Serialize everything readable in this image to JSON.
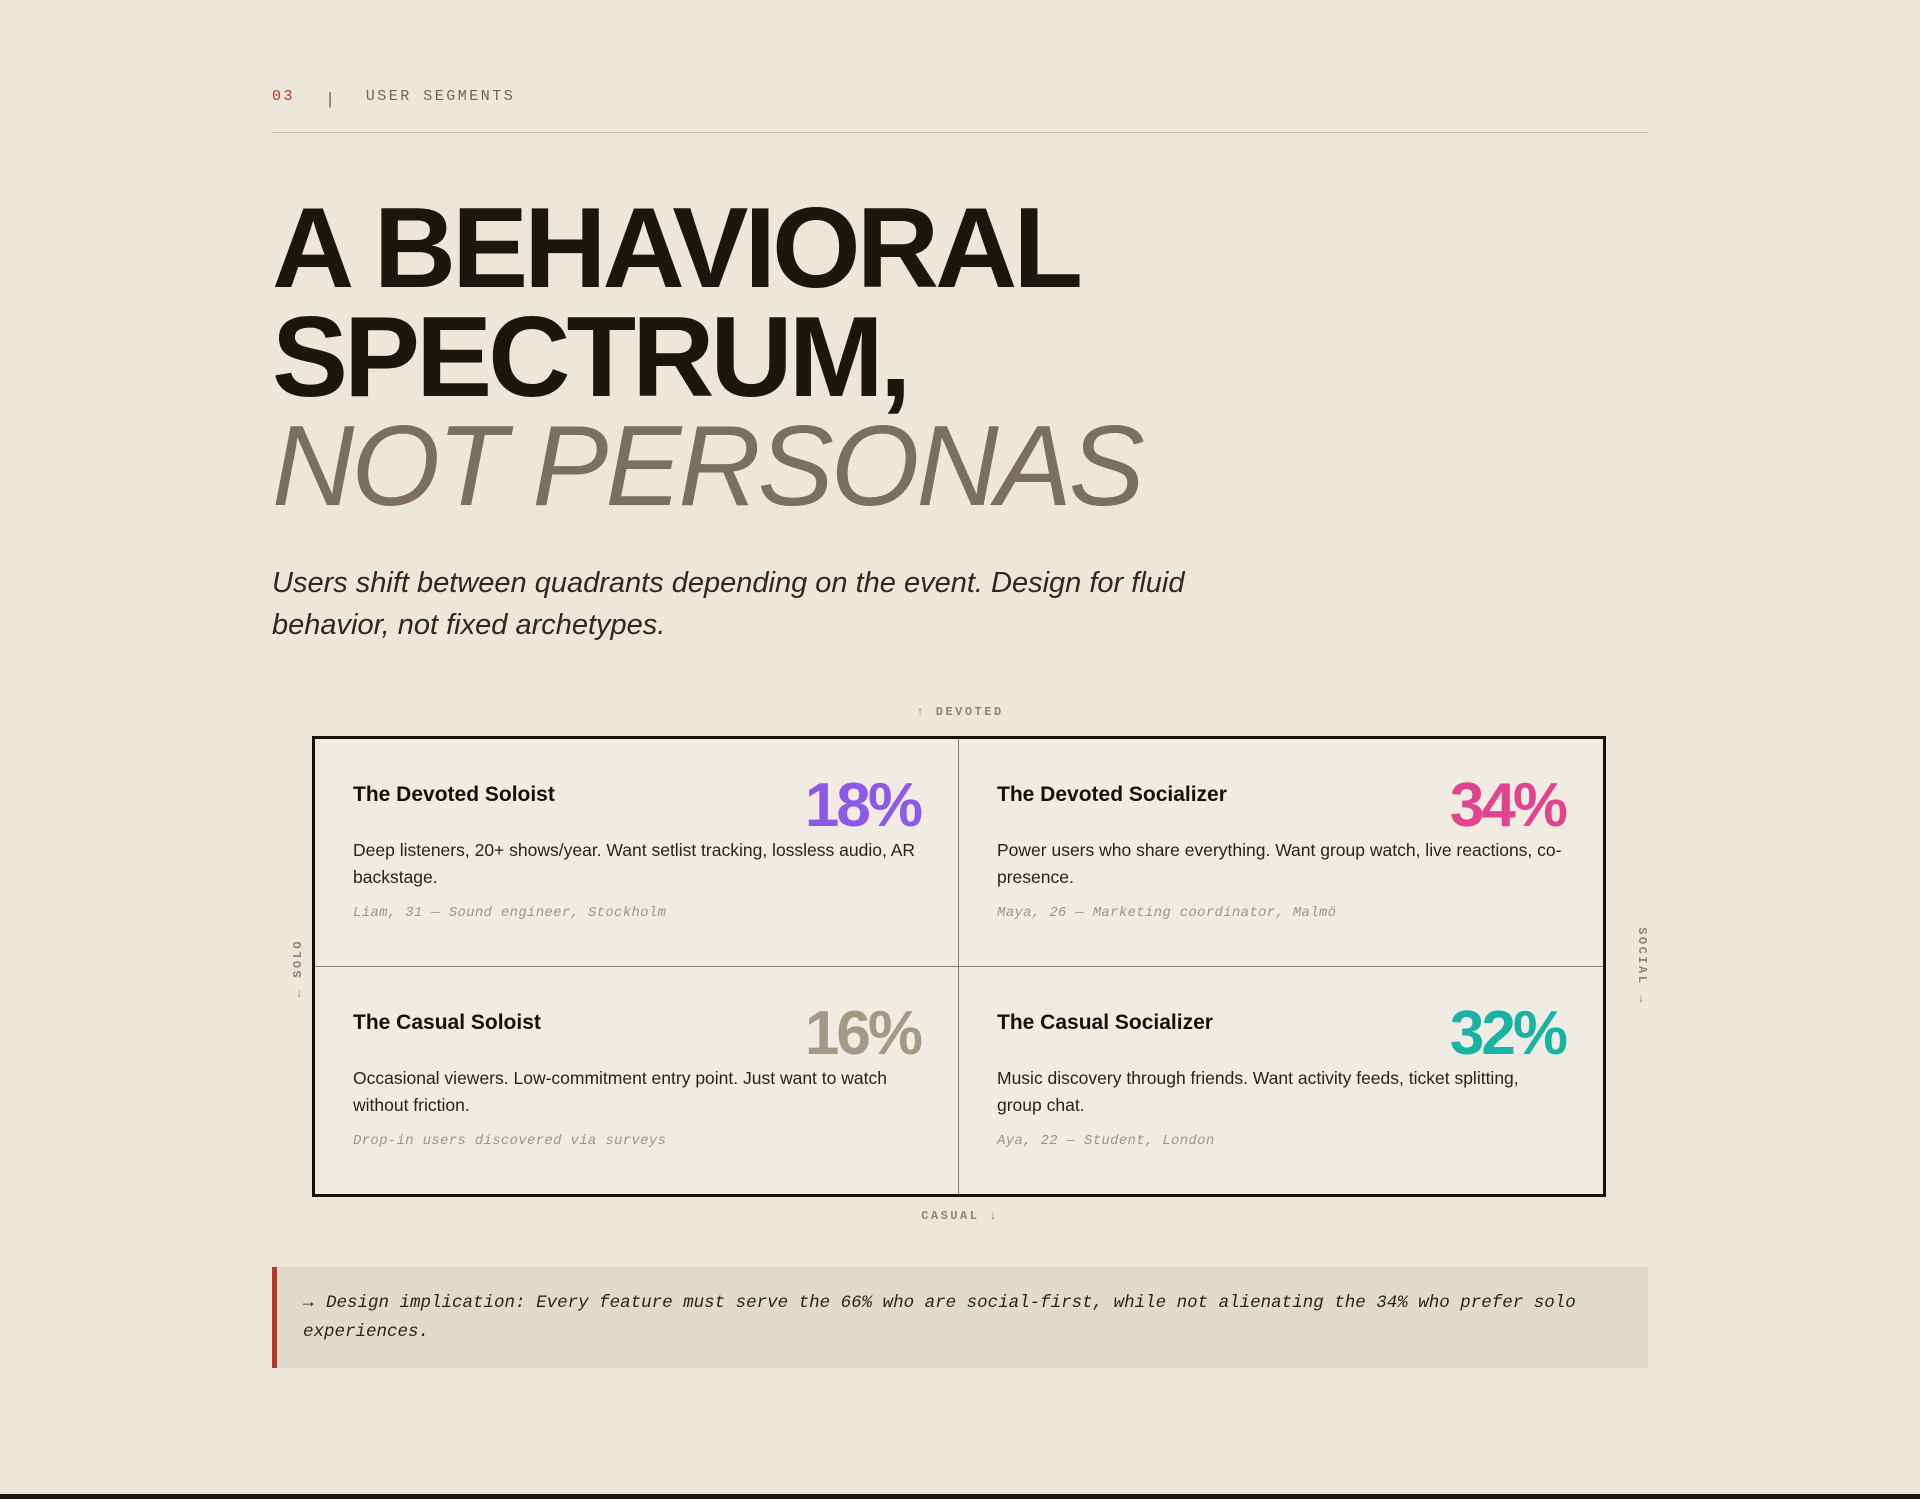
{
  "section": {
    "number": "03",
    "separator": "|",
    "label": "USER SEGMENTS"
  },
  "headline": {
    "line1": "A BEHAVIORAL",
    "line2": "SPECTRUM,",
    "line3": "NOT PERSONAS"
  },
  "subtitle": "Users shift between quadrants depending on the event. Design for fluid behavior, not fixed archetypes.",
  "matrix": {
    "axis_top": "↑ DEVOTED",
    "axis_bottom": "CASUAL ↓",
    "axis_left": "← SOLO",
    "axis_right": "SOCIAL →",
    "quadrants": [
      {
        "title": "The Devoted Soloist",
        "percent": "18%",
        "color": "#8b5be8",
        "description": "Deep listeners, 20+ shows/year. Want setlist tracking, lossless audio, AR backstage.",
        "example": "Liam, 31 — Sound engineer, Stockholm"
      },
      {
        "title": "The Devoted Socializer",
        "percent": "34%",
        "color": "#e2438e",
        "description": "Power users who share everything. Want group watch, live reactions, co-presence.",
        "example": "Maya, 26 — Marketing coordinator, Malmö"
      },
      {
        "title": "The Casual Soloist",
        "percent": "16%",
        "color": "#a39987",
        "description": "Occasional viewers. Low-commitment entry point. Just want to watch without friction.",
        "example": "Drop-in users discovered via surveys"
      },
      {
        "title": "The Casual Socializer",
        "percent": "32%",
        "color": "#17b3a3",
        "description": "Music discovery through friends. Want activity feeds, ticket splitting, group chat.",
        "example": "Aya, 22 — Student, London"
      }
    ]
  },
  "callout": {
    "arrow": "→",
    "text": "Design implication: Every feature must serve the 66% who are social-first, while not alienating the 34% who prefer solo experiences."
  }
}
